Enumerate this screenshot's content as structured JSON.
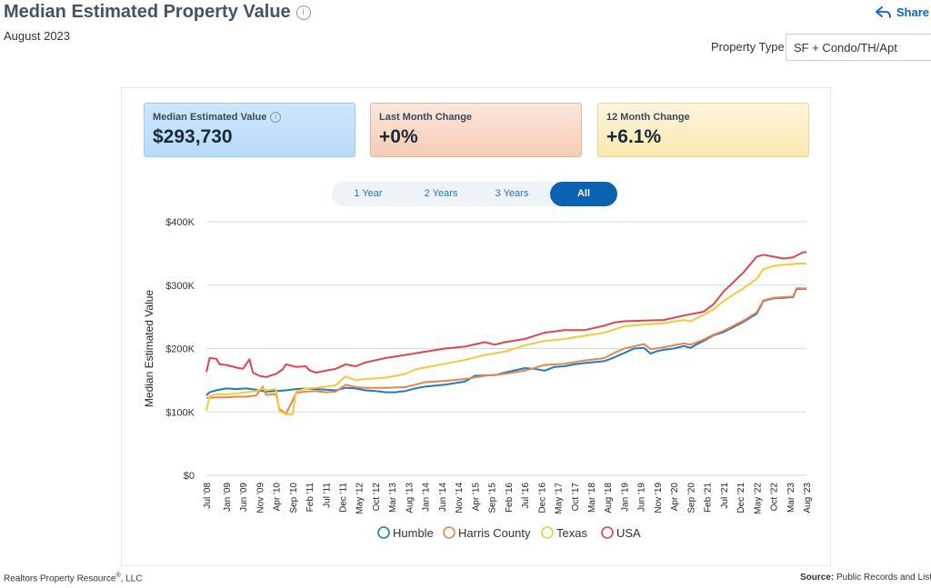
{
  "header": {
    "title": "Median Estimated Property Value",
    "subtitle": "August 2023",
    "share_label": "Share",
    "property_type_label": "Property Type",
    "property_type_value": "SF + Condo/TH/Apt"
  },
  "stats": [
    {
      "label": "Median Estimated Value",
      "value": "$293,730"
    },
    {
      "label": "Last Month Change",
      "value": "+0%"
    },
    {
      "label": "12 Month Change",
      "value": "+6.1%"
    }
  ],
  "tabs": [
    "1 Year",
    "2 Years",
    "3 Years",
    "All"
  ],
  "active_tab": "All",
  "footer": {
    "left": "Realtors Property Resource",
    "left_mark": "®",
    "left_suffix": ", LLC",
    "source_label": "Source:",
    "source_text": "Public Records and List"
  },
  "colors": {
    "Humble": "#1f7ac9",
    "Harris County": "#e8864a",
    "Texas": "#f5c93a",
    "USA": "#e0454d"
  },
  "chart_data": {
    "type": "line",
    "title": "",
    "ylabel": "Median Estimated Value",
    "xlabel": "",
    "ylim": [
      0,
      400000
    ],
    "x_start": 2008.5,
    "x_end": 2023.583,
    "y_ticks": [
      {
        "value": 0,
        "label": "$0"
      },
      {
        "value": 100000,
        "label": "$100K"
      },
      {
        "value": 200000,
        "label": "$200K"
      },
      {
        "value": 300000,
        "label": "$300K"
      },
      {
        "value": 400000,
        "label": "$400K"
      }
    ],
    "x_ticks": [
      {
        "t": 2008.5,
        "label": "Jul '08"
      },
      {
        "t": 2009.0,
        "label": "Jan '09"
      },
      {
        "t": 2009.417,
        "label": "Jun '09"
      },
      {
        "t": 2009.833,
        "label": "Nov '09"
      },
      {
        "t": 2010.25,
        "label": "Apr '10"
      },
      {
        "t": 2010.667,
        "label": "Sep '10"
      },
      {
        "t": 2011.083,
        "label": "Feb '11"
      },
      {
        "t": 2011.5,
        "label": "Jul '11"
      },
      {
        "t": 2011.917,
        "label": "Dec '11"
      },
      {
        "t": 2012.333,
        "label": "May '12"
      },
      {
        "t": 2012.75,
        "label": "Oct '12"
      },
      {
        "t": 2013.167,
        "label": "Mar '13"
      },
      {
        "t": 2013.583,
        "label": "Aug '13"
      },
      {
        "t": 2014.0,
        "label": "Jan '14"
      },
      {
        "t": 2014.417,
        "label": "Jun '14"
      },
      {
        "t": 2014.833,
        "label": "Nov '14"
      },
      {
        "t": 2015.25,
        "label": "Apr '15"
      },
      {
        "t": 2015.667,
        "label": "Sep '15"
      },
      {
        "t": 2016.083,
        "label": "Feb '16"
      },
      {
        "t": 2016.5,
        "label": "Jul '16"
      },
      {
        "t": 2016.917,
        "label": "Dec '16"
      },
      {
        "t": 2017.333,
        "label": "May '17"
      },
      {
        "t": 2017.75,
        "label": "Oct '17"
      },
      {
        "t": 2018.167,
        "label": "Mar '18"
      },
      {
        "t": 2018.583,
        "label": "Aug '18"
      },
      {
        "t": 2019.0,
        "label": "Jan '19"
      },
      {
        "t": 2019.417,
        "label": "Jun '19"
      },
      {
        "t": 2019.833,
        "label": "Nov '19"
      },
      {
        "t": 2020.25,
        "label": "Apr '20"
      },
      {
        "t": 2020.667,
        "label": "Sep '20"
      },
      {
        "t": 2021.083,
        "label": "Feb '21"
      },
      {
        "t": 2021.5,
        "label": "Jul '21"
      },
      {
        "t": 2021.917,
        "label": "Dec '21"
      },
      {
        "t": 2022.333,
        "label": "May '22"
      },
      {
        "t": 2022.75,
        "label": "Oct '22"
      },
      {
        "t": 2023.167,
        "label": "Mar '23"
      },
      {
        "t": 2023.583,
        "label": "Aug '23"
      }
    ],
    "series": [
      {
        "name": "Humble",
        "points": [
          [
            2008.5,
            126000
          ],
          [
            2008.583,
            131000
          ],
          [
            2008.75,
            134000
          ],
          [
            2009.0,
            137000
          ],
          [
            2009.25,
            136000
          ],
          [
            2009.5,
            137000
          ],
          [
            2009.75,
            135000
          ],
          [
            2010.0,
            132000
          ],
          [
            2010.25,
            133000
          ],
          [
            2010.5,
            134000
          ],
          [
            2010.75,
            136000
          ],
          [
            2011.0,
            137000
          ],
          [
            2011.25,
            136000
          ],
          [
            2011.5,
            135000
          ],
          [
            2011.75,
            134000
          ],
          [
            2012.0,
            138000
          ],
          [
            2012.25,
            137000
          ],
          [
            2012.5,
            134000
          ],
          [
            2012.75,
            133000
          ],
          [
            2013.0,
            131000
          ],
          [
            2013.25,
            131000
          ],
          [
            2013.5,
            133000
          ],
          [
            2013.75,
            137000
          ],
          [
            2014.0,
            140000
          ],
          [
            2014.5,
            143000
          ],
          [
            2015.0,
            148000
          ],
          [
            2015.25,
            157000
          ],
          [
            2015.75,
            158000
          ],
          [
            2016.0,
            162000
          ],
          [
            2016.5,
            169000
          ],
          [
            2016.75,
            168000
          ],
          [
            2017.0,
            165000
          ],
          [
            2017.25,
            171000
          ],
          [
            2017.5,
            172000
          ],
          [
            2017.75,
            175000
          ],
          [
            2018.0,
            177000
          ],
          [
            2018.5,
            180000
          ],
          [
            2018.75,
            186000
          ],
          [
            2019.0,
            193000
          ],
          [
            2019.25,
            200000
          ],
          [
            2019.5,
            201000
          ],
          [
            2019.667,
            192000
          ],
          [
            2019.833,
            196000
          ],
          [
            2020.0,
            198000
          ],
          [
            2020.25,
            200000
          ],
          [
            2020.5,
            204000
          ],
          [
            2020.667,
            201000
          ],
          [
            2020.833,
            207000
          ],
          [
            2021.0,
            212000
          ],
          [
            2021.25,
            221000
          ],
          [
            2021.5,
            226000
          ],
          [
            2021.75,
            234000
          ],
          [
            2022.0,
            242000
          ],
          [
            2022.333,
            255000
          ],
          [
            2022.5,
            275000
          ],
          [
            2022.75,
            279000
          ],
          [
            2023.0,
            280000
          ],
          [
            2023.25,
            281000
          ],
          [
            2023.333,
            294000
          ],
          [
            2023.583,
            294000
          ]
        ]
      },
      {
        "name": "Harris County",
        "points": [
          [
            2008.5,
            122000
          ],
          [
            2008.75,
            123000
          ],
          [
            2009.0,
            123000
          ],
          [
            2009.25,
            124000
          ],
          [
            2009.5,
            124000
          ],
          [
            2009.75,
            126000
          ],
          [
            2009.917,
            140000
          ],
          [
            2010.0,
            127000
          ],
          [
            2010.25,
            128000
          ],
          [
            2010.333,
            105000
          ],
          [
            2010.5,
            97000
          ],
          [
            2010.667,
            118000
          ],
          [
            2010.75,
            130000
          ],
          [
            2011.0,
            132000
          ],
          [
            2011.25,
            133000
          ],
          [
            2011.5,
            131000
          ],
          [
            2011.75,
            132000
          ],
          [
            2012.0,
            143000
          ],
          [
            2012.25,
            139000
          ],
          [
            2012.5,
            138000
          ],
          [
            2013.0,
            138000
          ],
          [
            2013.5,
            139000
          ],
          [
            2013.75,
            143000
          ],
          [
            2014.0,
            147000
          ],
          [
            2014.5,
            149000
          ],
          [
            2015.0,
            152000
          ],
          [
            2015.5,
            157000
          ],
          [
            2016.0,
            160000
          ],
          [
            2016.5,
            165000
          ],
          [
            2017.0,
            174000
          ],
          [
            2017.5,
            176000
          ],
          [
            2018.0,
            181000
          ],
          [
            2018.5,
            185000
          ],
          [
            2018.75,
            193000
          ],
          [
            2019.0,
            200000
          ],
          [
            2019.5,
            207000
          ],
          [
            2019.667,
            199000
          ],
          [
            2020.0,
            202000
          ],
          [
            2020.5,
            208000
          ],
          [
            2020.667,
            206000
          ],
          [
            2021.0,
            214000
          ],
          [
            2021.25,
            222000
          ],
          [
            2021.5,
            228000
          ],
          [
            2021.75,
            236000
          ],
          [
            2022.0,
            244000
          ],
          [
            2022.333,
            257000
          ],
          [
            2022.5,
            276000
          ],
          [
            2022.75,
            280000
          ],
          [
            2023.0,
            281000
          ],
          [
            2023.25,
            282000
          ],
          [
            2023.333,
            295000
          ],
          [
            2023.583,
            295000
          ]
        ]
      },
      {
        "name": "Texas",
        "points": [
          [
            2008.5,
            102000
          ],
          [
            2008.583,
            125000
          ],
          [
            2008.75,
            128000
          ],
          [
            2009.0,
            128000
          ],
          [
            2009.25,
            129000
          ],
          [
            2009.5,
            131000
          ],
          [
            2009.75,
            133000
          ],
          [
            2009.917,
            137000
          ],
          [
            2010.0,
            134000
          ],
          [
            2010.25,
            136000
          ],
          [
            2010.333,
            102000
          ],
          [
            2010.5,
            96000
          ],
          [
            2010.667,
            96000
          ],
          [
            2010.75,
            132000
          ],
          [
            2011.0,
            137000
          ],
          [
            2011.25,
            138000
          ],
          [
            2011.5,
            140000
          ],
          [
            2011.75,
            142000
          ],
          [
            2012.0,
            156000
          ],
          [
            2012.25,
            150000
          ],
          [
            2012.5,
            152000
          ],
          [
            2013.0,
            154000
          ],
          [
            2013.5,
            160000
          ],
          [
            2013.75,
            167000
          ],
          [
            2014.0,
            170000
          ],
          [
            2014.5,
            176000
          ],
          [
            2015.0,
            182000
          ],
          [
            2015.5,
            190000
          ],
          [
            2016.0,
            195000
          ],
          [
            2016.5,
            205000
          ],
          [
            2017.0,
            212000
          ],
          [
            2017.5,
            215000
          ],
          [
            2018.0,
            220000
          ],
          [
            2018.5,
            225000
          ],
          [
            2018.75,
            230000
          ],
          [
            2019.0,
            235000
          ],
          [
            2019.5,
            238000
          ],
          [
            2020.0,
            240000
          ],
          [
            2020.5,
            245000
          ],
          [
            2020.667,
            243000
          ],
          [
            2021.0,
            253000
          ],
          [
            2021.25,
            262000
          ],
          [
            2021.5,
            275000
          ],
          [
            2021.75,
            285000
          ],
          [
            2022.0,
            295000
          ],
          [
            2022.333,
            310000
          ],
          [
            2022.5,
            325000
          ],
          [
            2022.75,
            330000
          ],
          [
            2023.0,
            332000
          ],
          [
            2023.25,
            333000
          ],
          [
            2023.333,
            334000
          ],
          [
            2023.583,
            334000
          ]
        ]
      },
      {
        "name": "USA",
        "points": [
          [
            2008.5,
            163000
          ],
          [
            2008.583,
            185000
          ],
          [
            2008.75,
            184000
          ],
          [
            2008.833,
            175000
          ],
          [
            2009.0,
            174000
          ],
          [
            2009.25,
            170000
          ],
          [
            2009.417,
            168000
          ],
          [
            2009.583,
            183000
          ],
          [
            2009.667,
            162000
          ],
          [
            2009.833,
            157000
          ],
          [
            2010.0,
            155000
          ],
          [
            2010.25,
            160000
          ],
          [
            2010.417,
            167000
          ],
          [
            2010.5,
            175000
          ],
          [
            2010.75,
            171000
          ],
          [
            2011.0,
            172000
          ],
          [
            2011.083,
            166000
          ],
          [
            2011.25,
            162000
          ],
          [
            2011.5,
            165000
          ],
          [
            2011.75,
            168000
          ],
          [
            2012.0,
            175000
          ],
          [
            2012.25,
            172000
          ],
          [
            2012.5,
            178000
          ],
          [
            2013.0,
            185000
          ],
          [
            2013.5,
            190000
          ],
          [
            2014.0,
            195000
          ],
          [
            2014.5,
            200000
          ],
          [
            2015.0,
            203000
          ],
          [
            2015.5,
            210000
          ],
          [
            2015.75,
            206000
          ],
          [
            2016.0,
            210000
          ],
          [
            2016.5,
            215000
          ],
          [
            2017.0,
            225000
          ],
          [
            2017.5,
            229000
          ],
          [
            2018.0,
            229000
          ],
          [
            2018.5,
            236000
          ],
          [
            2018.75,
            241000
          ],
          [
            2019.0,
            243000
          ],
          [
            2019.5,
            244000
          ],
          [
            2020.0,
            245000
          ],
          [
            2020.5,
            252000
          ],
          [
            2020.75,
            255000
          ],
          [
            2021.0,
            258000
          ],
          [
            2021.25,
            270000
          ],
          [
            2021.5,
            290000
          ],
          [
            2021.75,
            305000
          ],
          [
            2022.0,
            320000
          ],
          [
            2022.333,
            345000
          ],
          [
            2022.5,
            348000
          ],
          [
            2022.75,
            345000
          ],
          [
            2023.0,
            342000
          ],
          [
            2023.25,
            344000
          ],
          [
            2023.5,
            352000
          ],
          [
            2023.583,
            352000
          ]
        ]
      }
    ]
  }
}
